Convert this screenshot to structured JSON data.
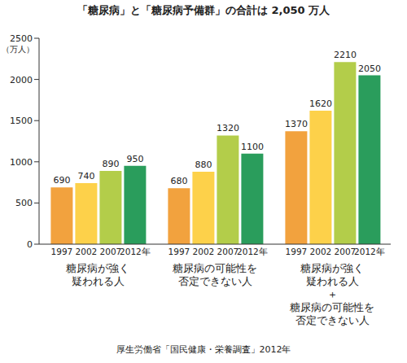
{
  "chart_data": {
    "type": "bar",
    "title": "「糖尿病」と「糖尿病予備群」の合計は 2,050 万人",
    "y_label": "（万人）",
    "source": "厚生労働省「国民健康・栄養調査」2012年",
    "categories": [
      "糖尿病が強く\n疑われる人",
      "糖尿病の可能性を\n否定できない人",
      "糖尿病が強く\n疑われる人\n＋\n糖尿病の可能性を\n否定できない人"
    ],
    "series": [
      {
        "name": "1997",
        "color": "#f2a23e",
        "values": [
          690,
          680,
          1370
        ]
      },
      {
        "name": "2002",
        "color": "#fdd14a",
        "values": [
          740,
          880,
          1620
        ]
      },
      {
        "name": "2007",
        "color": "#b3cd4a",
        "values": [
          890,
          1320,
          2210
        ]
      },
      {
        "name": "2012年",
        "color": "#2a9d5c",
        "values": [
          950,
          1100,
          2050
        ]
      }
    ],
    "ylim": [
      0,
      2500
    ],
    "yticks": [
      0,
      500,
      1000,
      1500,
      2000,
      2500
    ],
    "grid": false,
    "data_labels": true
  }
}
